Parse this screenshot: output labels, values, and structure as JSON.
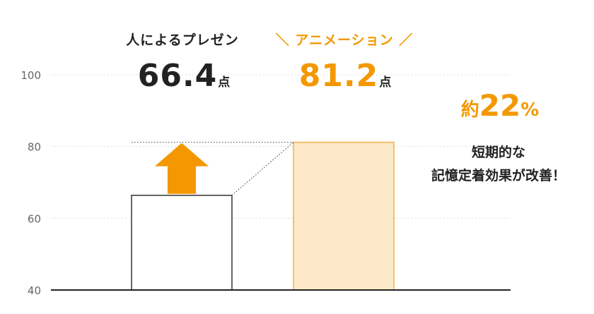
{
  "chart_data": {
    "type": "bar",
    "categories": [
      "人によるプレゼン",
      "アニメーション"
    ],
    "values": [
      66.4,
      81.2
    ],
    "ylim": [
      40,
      100
    ],
    "yticks": [
      "40",
      "60",
      "80",
      "100"
    ],
    "grid": true,
    "value_unit": "点",
    "value_labels": [
      "66.4",
      "81.2"
    ],
    "header_b_prefix": "＼",
    "header_b_suffix": "／",
    "improvement": {
      "prefix": "約",
      "value": "22",
      "unit": "%"
    },
    "description": [
      "短期的な",
      "記憶定着効果が改善！"
    ],
    "colors": {
      "bar_a_fill": "#ffffff",
      "bar_a_stroke": "#333333",
      "bar_b_fill": "#fde9c8",
      "bar_b_stroke": "#f5b04a",
      "accent": "#f39800",
      "axis": "#222222",
      "grid": "#dddddd",
      "tick_text": "#666666"
    },
    "arrow": "up-arrow-icon"
  }
}
